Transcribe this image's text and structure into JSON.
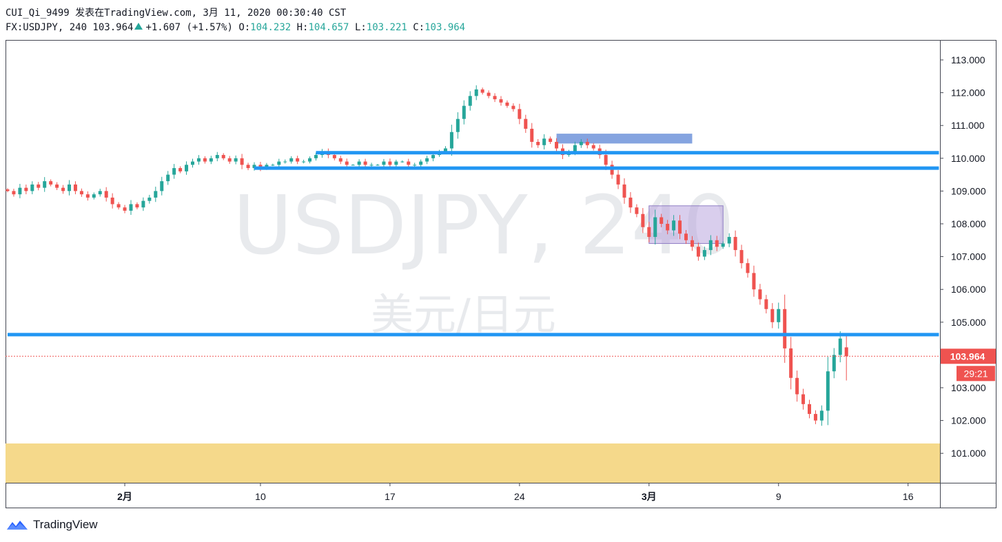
{
  "header": {
    "line1": "CUI_Qi_9499 发表在TradingView.com, 3月 11, 2020 00:30:40 CST",
    "symbol_prefix": "FX:USDJPY, 240 103.964",
    "change": "+1.607 (+1.57%)",
    "o_label": "O:",
    "o_value": "104.232",
    "h_label": "H:",
    "h_value": "104.657",
    "l_label": "L:",
    "l_value": "103.221",
    "c_label": "C:",
    "c_value": "103.964"
  },
  "watermark": {
    "symbol": "USDJPY, 240",
    "description": "美元/日元"
  },
  "footer": {
    "brand": "TradingView"
  },
  "colors": {
    "up": "#26a69a",
    "down": "#ef5350",
    "level_line": "#2196f3",
    "zone": "#f5d98b",
    "box_blue": "#5c86d6",
    "box_purple": "#b39ddb"
  },
  "chart_data": {
    "type": "candlestick",
    "symbol": "FX:USDJPY",
    "interval": "240",
    "ylim": [
      100.0,
      113.6
    ],
    "y_ticks": [
      "113.000",
      "112.000",
      "111.000",
      "110.000",
      "109.000",
      "108.000",
      "107.000",
      "106.000",
      "105.000",
      "104.000",
      "103.000",
      "102.000",
      "101.000"
    ],
    "x_ticks": [
      {
        "label": "2月",
        "bar": 19,
        "bold": true
      },
      {
        "label": "10",
        "bar": 41,
        "bold": false
      },
      {
        "label": "17",
        "bar": 62,
        "bold": false
      },
      {
        "label": "24",
        "bar": 83,
        "bold": false
      },
      {
        "label": "3月",
        "bar": 104,
        "bold": true
      },
      {
        "label": "9",
        "bar": 125,
        "bold": false
      },
      {
        "label": "16",
        "bar": 146,
        "bold": false
      }
    ],
    "price_label": "103.964",
    "countdown_label": "29:21",
    "horizontal_levels": [
      110.17,
      109.7,
      104.62
    ],
    "support_zone": [
      100.05,
      101.3
    ],
    "boxes": [
      {
        "name": "resistance-box",
        "bar_start": 89,
        "bar_end": 111,
        "top": 110.75,
        "bottom": 110.45
      },
      {
        "name": "consolidation-box",
        "bar_start": 104,
        "bar_end": 116,
        "top": 108.55,
        "bottom": 107.4
      }
    ],
    "segments": [
      {
        "bar_start": 50,
        "bar_end": 151,
        "price": 110.17
      },
      {
        "bar_start": 40,
        "bar_end": 151,
        "price": 109.7
      },
      {
        "bar_start": 0,
        "bar_end": 151,
        "price": 104.62
      }
    ],
    "closes": [
      109.0,
      108.9,
      109.1,
      109.0,
      109.2,
      109.1,
      109.3,
      109.2,
      109.1,
      109.0,
      109.2,
      109.0,
      108.9,
      108.8,
      108.9,
      109.0,
      108.8,
      108.6,
      108.5,
      108.4,
      108.6,
      108.5,
      108.7,
      108.8,
      109.0,
      109.3,
      109.5,
      109.7,
      109.6,
      109.8,
      109.9,
      110.0,
      109.9,
      110.0,
      110.1,
      110.0,
      109.9,
      110.0,
      109.8,
      109.7,
      109.8,
      109.7,
      109.8,
      109.8,
      109.9,
      109.9,
      110.0,
      109.9,
      109.9,
      110.0,
      110.1,
      110.2,
      110.1,
      110.0,
      109.9,
      109.8,
      109.8,
      109.9,
      109.8,
      109.8,
      109.8,
      109.9,
      109.8,
      109.9,
      109.9,
      109.8,
      109.8,
      109.9,
      110.0,
      110.1,
      110.2,
      110.3,
      110.8,
      111.2,
      111.6,
      111.9,
      112.1,
      112.0,
      111.9,
      111.8,
      111.7,
      111.6,
      111.5,
      111.2,
      110.9,
      110.5,
      110.4,
      110.6,
      110.5,
      110.3,
      110.1,
      110.2,
      110.4,
      110.5,
      110.4,
      110.3,
      110.1,
      109.8,
      109.5,
      109.2,
      108.8,
      108.5,
      108.3,
      107.9,
      107.6,
      108.2,
      108.0,
      107.8,
      108.1,
      107.7,
      107.5,
      107.3,
      107.0,
      107.2,
      107.5,
      107.3,
      107.4,
      107.6,
      107.2,
      106.8,
      106.5,
      106.0,
      105.7,
      105.4,
      105.0,
      105.4,
      104.2,
      103.3,
      102.8,
      102.5,
      102.2,
      102.0,
      102.3,
      103.5,
      104.0,
      104.5,
      103.96
    ],
    "last_bar_open": 104.232,
    "last_bar_high": 104.657,
    "last_bar_low": 103.221
  }
}
